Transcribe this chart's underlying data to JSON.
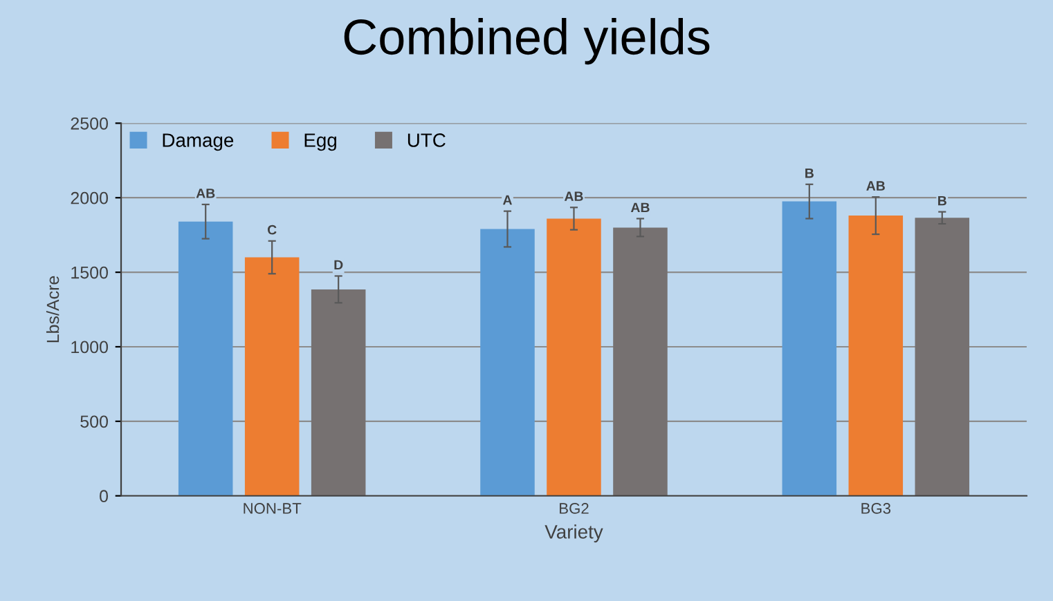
{
  "chart_data": {
    "type": "bar",
    "title": "Combined yields",
    "xlabel": "Variety",
    "ylabel": "Lbs/Acre",
    "categories": [
      "NON-BT",
      "BG2",
      "BG3"
    ],
    "series": [
      {
        "name": "Damage",
        "color": "#5b9bd5",
        "values": [
          1840,
          1790,
          1975
        ],
        "errors": [
          115,
          120,
          115
        ],
        "value_labels": [
          "AB",
          "A",
          "B"
        ]
      },
      {
        "name": "Egg",
        "color": "#ed7d31",
        "values": [
          1600,
          1860,
          1880
        ],
        "errors": [
          110,
          75,
          125
        ],
        "value_labels": [
          "C",
          "AB",
          "AB"
        ]
      },
      {
        "name": "UTC",
        "color": "#767171",
        "values": [
          1385,
          1800,
          1865
        ],
        "errors": [
          90,
          60,
          40
        ],
        "value_labels": [
          "D",
          "AB",
          "B"
        ]
      }
    ],
    "ylim": [
      0,
      2500
    ],
    "yticks": [
      0,
      500,
      1000,
      1500,
      2000,
      2500
    ],
    "grid": "y",
    "legend": "top left"
  }
}
